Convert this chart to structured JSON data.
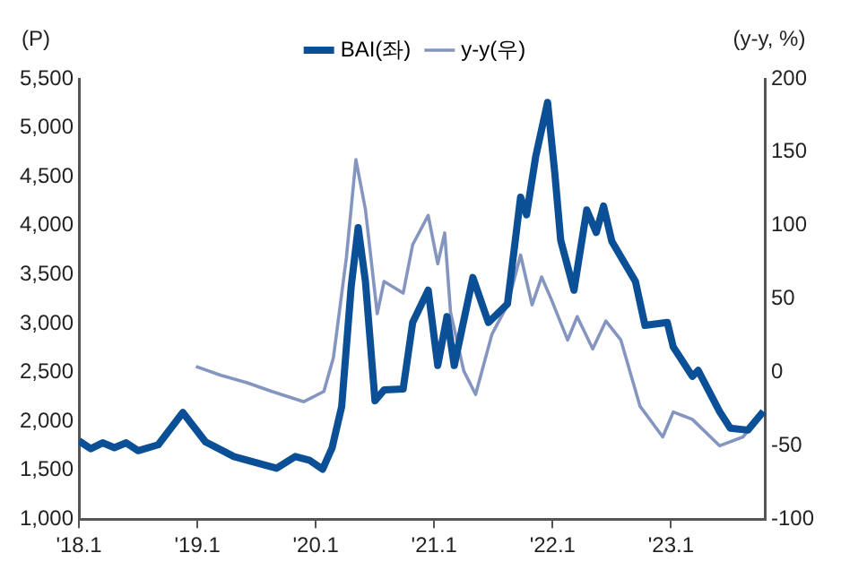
{
  "chart_data": {
    "type": "line",
    "ylabel": "(P)",
    "y2label": "(y-y, %)",
    "legend": "top",
    "grid": false,
    "marker": "none",
    "xlim": [
      "2018-01-01",
      "2023-10-19"
    ],
    "xticks": [
      {
        "value": "2018-01-01",
        "label": "'18.1"
      },
      {
        "value": "2019-01-01",
        "label": "'19.1"
      },
      {
        "value": "2020-01-01",
        "label": "'20.1"
      },
      {
        "value": "2021-01-01",
        "label": "'21.1"
      },
      {
        "value": "2022-01-01",
        "label": "'22.1"
      },
      {
        "value": "2023-01-01",
        "label": "'23.1"
      }
    ],
    "ylim": [
      1000,
      5500
    ],
    "yticks": [
      {
        "value": 1000,
        "label": "1,000"
      },
      {
        "value": 1500,
        "label": "1,500"
      },
      {
        "value": 2000,
        "label": "2,000"
      },
      {
        "value": 2500,
        "label": "2,500"
      },
      {
        "value": 3000,
        "label": "3,000"
      },
      {
        "value": 3500,
        "label": "3,500"
      },
      {
        "value": 4000,
        "label": "4,000"
      },
      {
        "value": 4500,
        "label": "4,500"
      },
      {
        "value": 5000,
        "label": "5,000"
      },
      {
        "value": 5500,
        "label": "5,500"
      }
    ],
    "y2lim": [
      -100,
      200
    ],
    "y2ticks": [
      -100,
      -50,
      0,
      50,
      100,
      150,
      200
    ],
    "series": [
      {
        "name": "BAI(좌)",
        "color": "#0b4f96",
        "x": [
          "2018-01-01",
          "2018-02-07",
          "2018-03-13",
          "2018-04-19",
          "2018-05-25",
          "2018-07-01",
          "2018-09-02",
          "2018-11-17",
          "2019-01-26",
          "2019-04-22",
          "2019-07-29",
          "2019-09-02",
          "2019-10-29",
          "2019-12-13",
          "2020-01-22",
          "2020-02-21",
          "2020-03-20",
          "2020-04-19",
          "2020-05-10",
          "2020-06-02",
          "2020-07-01",
          "2020-07-29",
          "2020-09-27",
          "2020-10-26",
          "2020-12-13",
          "2021-01-12",
          "2021-02-10",
          "2021-03-02",
          "2021-04-29",
          "2021-06-16",
          "2021-08-14",
          "2021-09-24",
          "2021-10-12",
          "2021-11-10",
          "2021-12-16",
          "2022-01-08",
          "2022-01-26",
          "2022-03-06",
          "2022-04-15",
          "2022-05-14",
          "2022-06-06",
          "2022-07-01",
          "2022-09-13",
          "2022-10-12",
          "2022-12-20",
          "2023-01-08",
          "2023-03-06",
          "2023-03-24",
          "2023-05-29",
          "2023-07-01",
          "2023-08-25",
          "2023-10-12"
        ],
        "values": [
          1800,
          1720,
          1780,
          1730,
          1780,
          1700,
          1760,
          2090,
          1790,
          1640,
          1550,
          1520,
          1640,
          1600,
          1510,
          1730,
          2150,
          3380,
          3980,
          3430,
          2210,
          2320,
          2330,
          3010,
          3340,
          2570,
          3070,
          2570,
          3470,
          3010,
          3200,
          4290,
          4110,
          4710,
          5260,
          4530,
          3850,
          3340,
          4160,
          3930,
          4200,
          3840,
          3430,
          2980,
          3010,
          2760,
          2460,
          2520,
          2100,
          1930,
          1910,
          2100
        ]
      },
      {
        "name": "y-y(우)",
        "color": "#8496bf",
        "axis": "y2",
        "x": [
          "2018-12-27",
          "2019-03-13",
          "2019-06-02",
          "2019-08-18",
          "2019-11-25",
          "2020-01-26",
          "2020-02-25",
          "2020-04-04",
          "2020-05-03",
          "2020-06-02",
          "2020-07-08",
          "2020-07-29",
          "2020-09-27",
          "2020-10-26",
          "2020-12-13",
          "2021-01-12",
          "2021-02-03",
          "2021-02-21",
          "2021-04-01",
          "2021-05-07",
          "2021-06-27",
          "2021-08-14",
          "2021-09-24",
          "2021-10-29",
          "2021-11-28",
          "2021-12-27",
          "2022-02-17",
          "2022-03-16",
          "2022-05-03",
          "2022-06-13",
          "2022-07-29",
          "2022-09-27",
          "2022-12-06",
          "2023-01-08",
          "2023-03-06",
          "2023-05-29",
          "2023-08-10",
          "2023-10-12"
        ],
        "values": [
          4,
          -2,
          -7,
          -13,
          -20,
          -13,
          10,
          78,
          145,
          111,
          40,
          62,
          54,
          87,
          107,
          74,
          95,
          41,
          1,
          -15,
          26,
          46,
          80,
          46,
          65,
          50,
          22,
          38,
          16,
          35,
          22,
          -23,
          -44,
          -27,
          -32,
          -50,
          -44,
          -27
        ]
      }
    ]
  }
}
